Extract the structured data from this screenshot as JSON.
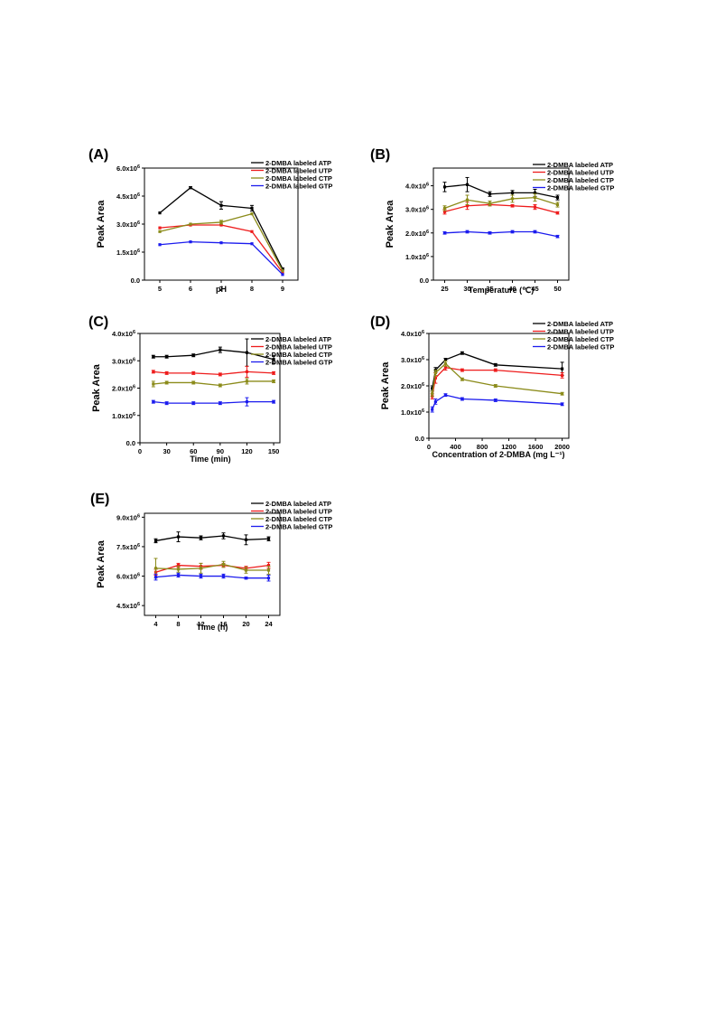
{
  "chart_data": [
    {
      "type": "line",
      "panel_label": "(A)",
      "xlabel": "pH",
      "ylabel": "Peak Area",
      "x": [
        5,
        6,
        7,
        8,
        9
      ],
      "xticks": [
        5,
        6,
        7,
        8,
        9
      ],
      "xtick_labels": [
        "5",
        "6",
        "7",
        "8",
        "9"
      ],
      "xlim": [
        4.5,
        9.5
      ],
      "ylim": [
        0,
        6000000
      ],
      "yticks": [
        0,
        1500000,
        3000000,
        4500000,
        6000000
      ],
      "ytick_labels": [
        {
          "mant": "0.0",
          "exp": ""
        },
        {
          "mant": "1.5x10",
          "exp": "6"
        },
        {
          "mant": "3.0x10",
          "exp": "6"
        },
        {
          "mant": "4.5x10",
          "exp": "6"
        },
        {
          "mant": "6.0x10",
          "exp": "6"
        }
      ],
      "legend_position": "top-right",
      "series": [
        {
          "name": "2-DMBA labeled ATP",
          "color": "#000000",
          "values": [
            3600000,
            4950000,
            4000000,
            3850000,
            600000
          ],
          "errors": [
            0,
            50000,
            200000,
            150000,
            50000
          ]
        },
        {
          "name": "2-DMBA labeled UTP",
          "color": "#ee1c1c",
          "values": [
            2800000,
            2950000,
            2950000,
            2600000,
            400000
          ],
          "errors": [
            0,
            0,
            0,
            0,
            0
          ]
        },
        {
          "name": "2-DMBA labeled CTP",
          "color": "#8b8b1a",
          "values": [
            2600000,
            3000000,
            3100000,
            3550000,
            500000
          ],
          "errors": [
            0,
            0,
            100000,
            0,
            0
          ]
        },
        {
          "name": "2-DMBA labeled GTP",
          "color": "#1c1cee",
          "values": [
            1900000,
            2050000,
            2000000,
            1950000,
            300000
          ],
          "errors": [
            0,
            0,
            0,
            0,
            0
          ]
        }
      ]
    },
    {
      "type": "line",
      "panel_label": "(B)",
      "xlabel": "Temperature (℃)",
      "ylabel": "Peak Area",
      "x": [
        25,
        30,
        35,
        40,
        45,
        50
      ],
      "xticks": [
        25,
        30,
        35,
        40,
        45,
        50
      ],
      "xtick_labels": [
        "25",
        "30",
        "35",
        "40",
        "45",
        "50"
      ],
      "xlim": [
        22.5,
        52.5
      ],
      "ylim": [
        0,
        4750000
      ],
      "yticks": [
        0,
        1000000,
        2000000,
        3000000,
        4000000
      ],
      "ytick_labels": [
        {
          "mant": "0.0",
          "exp": ""
        },
        {
          "mant": "1.0x10",
          "exp": "6"
        },
        {
          "mant": "2.0x10",
          "exp": "6"
        },
        {
          "mant": "3.0x10",
          "exp": "6"
        },
        {
          "mant": "4.0x10",
          "exp": "6"
        }
      ],
      "legend_position": "top-right",
      "series": [
        {
          "name": "2-DMBA labeled ATP",
          "color": "#000000",
          "values": [
            3950000,
            4050000,
            3650000,
            3700000,
            3700000,
            3500000
          ],
          "errors": [
            200000,
            300000,
            100000,
            100000,
            150000,
            100000
          ]
        },
        {
          "name": "2-DMBA labeled UTP",
          "color": "#ee1c1c",
          "values": [
            2900000,
            3150000,
            3200000,
            3150000,
            3100000,
            2850000
          ],
          "errors": [
            100000,
            150000,
            50000,
            50000,
            100000,
            50000
          ]
        },
        {
          "name": "2-DMBA labeled CTP",
          "color": "#8b8b1a",
          "values": [
            3050000,
            3400000,
            3250000,
            3450000,
            3500000,
            3200000
          ],
          "errors": [
            100000,
            200000,
            100000,
            150000,
            150000,
            100000
          ]
        },
        {
          "name": "2-DMBA labeled GTP",
          "color": "#1c1cee",
          "values": [
            2000000,
            2050000,
            2000000,
            2050000,
            2050000,
            1850000
          ],
          "errors": [
            50000,
            50000,
            50000,
            50000,
            50000,
            50000
          ]
        }
      ]
    },
    {
      "type": "line",
      "panel_label": "(C)",
      "xlabel": "Time (min)",
      "ylabel": "Peak Area",
      "x": [
        15,
        30,
        60,
        90,
        120,
        150
      ],
      "xticks": [
        0,
        30,
        60,
        90,
        120,
        150
      ],
      "xtick_labels": [
        "0",
        "30",
        "60",
        "90",
        "120",
        "150"
      ],
      "xlim": [
        0,
        157
      ],
      "ylim": [
        0,
        4000000
      ],
      "yticks": [
        0,
        1000000,
        2000000,
        3000000,
        4000000
      ],
      "ytick_labels": [
        {
          "mant": "0.0",
          "exp": ""
        },
        {
          "mant": "1.0x10",
          "exp": "6"
        },
        {
          "mant": "2.0x10",
          "exp": "6"
        },
        {
          "mant": "3.0x10",
          "exp": "6"
        },
        {
          "mant": "4.0x10",
          "exp": "6"
        }
      ],
      "legend_position": "top-right",
      "series": [
        {
          "name": "2-DMBA labeled ATP",
          "color": "#000000",
          "values": [
            3150000,
            3150000,
            3200000,
            3400000,
            3300000,
            3050000
          ],
          "errors": [
            50000,
            50000,
            50000,
            100000,
            500000,
            150000
          ]
        },
        {
          "name": "2-DMBA labeled UTP",
          "color": "#ee1c1c",
          "values": [
            2600000,
            2550000,
            2550000,
            2500000,
            2600000,
            2550000
          ],
          "errors": [
            50000,
            50000,
            50000,
            50000,
            200000,
            50000
          ]
        },
        {
          "name": "2-DMBA labeled CTP",
          "color": "#8b8b1a",
          "values": [
            2150000,
            2200000,
            2200000,
            2100000,
            2250000,
            2250000
          ],
          "errors": [
            100000,
            50000,
            50000,
            50000,
            100000,
            50000
          ]
        },
        {
          "name": "2-DMBA labeled GTP",
          "color": "#1c1cee",
          "values": [
            1500000,
            1450000,
            1450000,
            1450000,
            1500000,
            1500000
          ],
          "errors": [
            50000,
            50000,
            50000,
            50000,
            150000,
            50000
          ]
        }
      ]
    },
    {
      "type": "line",
      "panel_label": "(D)",
      "xlabel": "Concentration of 2-DMBA (mg L⁻¹)",
      "ylabel": "Peak Area",
      "x": [
        50,
        100,
        250,
        500,
        1000,
        2000
      ],
      "xticks": [
        0,
        400,
        800,
        1200,
        1600,
        2000
      ],
      "xtick_labels": [
        "0",
        "400",
        "800",
        "1200",
        "1600",
        "2000"
      ],
      "xlim": [
        0,
        2100
      ],
      "ylim": [
        0,
        4000000
      ],
      "yticks": [
        0,
        1000000,
        2000000,
        3000000,
        4000000
      ],
      "ytick_labels": [
        {
          "mant": "0.0",
          "exp": ""
        },
        {
          "mant": "1.0x10",
          "exp": "6"
        },
        {
          "mant": "2.0x10",
          "exp": "6"
        },
        {
          "mant": "3.0x10",
          "exp": "6"
        },
        {
          "mant": "4.0x10",
          "exp": "6"
        }
      ],
      "legend_position": "top-right",
      "series": [
        {
          "name": "2-DMBA labeled ATP",
          "color": "#000000",
          "values": [
            1900000,
            2600000,
            3000000,
            3250000,
            2800000,
            2650000
          ],
          "errors": [
            100000,
            100000,
            50000,
            50000,
            50000,
            250000
          ]
        },
        {
          "name": "2-DMBA labeled UTP",
          "color": "#ee1c1c",
          "values": [
            1600000,
            2300000,
            2700000,
            2600000,
            2600000,
            2400000
          ],
          "errors": [
            100000,
            200000,
            100000,
            50000,
            50000,
            100000
          ]
        },
        {
          "name": "2-DMBA labeled CTP",
          "color": "#8b8b1a",
          "values": [
            1700000,
            2500000,
            2850000,
            2250000,
            2000000,
            1700000
          ],
          "errors": [
            100000,
            100000,
            100000,
            50000,
            50000,
            50000
          ]
        },
        {
          "name": "2-DMBA labeled GTP",
          "color": "#1c1cee",
          "values": [
            1100000,
            1400000,
            1650000,
            1500000,
            1450000,
            1300000
          ],
          "errors": [
            100000,
            100000,
            50000,
            50000,
            50000,
            50000
          ]
        }
      ]
    },
    {
      "type": "line",
      "panel_label": "(E)",
      "xlabel": "Time (h)",
      "ylabel": "Peak Area",
      "x": [
        4,
        8,
        12,
        16,
        20,
        24
      ],
      "xticks": [
        4,
        8,
        12,
        16,
        20,
        24
      ],
      "xtick_labels": [
        "4",
        "8",
        "12",
        "16",
        "20",
        "24"
      ],
      "xlim": [
        2,
        26
      ],
      "ylim": [
        4000000,
        9200000
      ],
      "yticks": [
        4500000,
        6000000,
        7500000,
        9000000
      ],
      "ytick_labels": [
        {
          "mant": "4.5x10",
          "exp": "6"
        },
        {
          "mant": "6.0x10",
          "exp": "6"
        },
        {
          "mant": "7.5x10",
          "exp": "6"
        },
        {
          "mant": "9.0x10",
          "exp": "6"
        }
      ],
      "legend_position": "top-right",
      "series": [
        {
          "name": "2-DMBA labeled ATP",
          "color": "#000000",
          "values": [
            7800000,
            8000000,
            7950000,
            8050000,
            7850000,
            7900000
          ],
          "errors": [
            100000,
            250000,
            100000,
            150000,
            250000,
            100000
          ]
        },
        {
          "name": "2-DMBA labeled UTP",
          "color": "#ee1c1c",
          "values": [
            6200000,
            6550000,
            6500000,
            6550000,
            6400000,
            6550000
          ],
          "errors": [
            150000,
            100000,
            150000,
            100000,
            100000,
            150000
          ]
        },
        {
          "name": "2-DMBA labeled CTP",
          "color": "#8b8b1a",
          "values": [
            6400000,
            6350000,
            6400000,
            6600000,
            6300000,
            6300000
          ],
          "errors": [
            500000,
            150000,
            250000,
            150000,
            150000,
            200000
          ]
        },
        {
          "name": "2-DMBA labeled GTP",
          "color": "#1c1cee",
          "values": [
            5950000,
            6050000,
            6000000,
            6000000,
            5900000,
            5900000
          ],
          "errors": [
            150000,
            100000,
            100000,
            100000,
            50000,
            150000
          ]
        }
      ]
    }
  ]
}
